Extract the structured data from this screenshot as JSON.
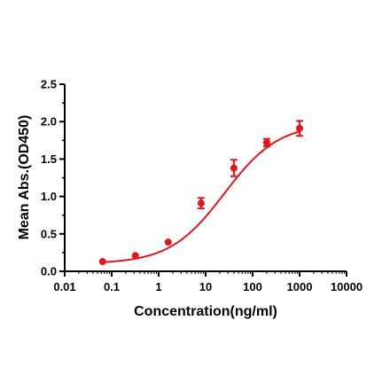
{
  "chart_data": {
    "type": "scatter",
    "title": "",
    "xlabel": "Concentration(ng/ml)",
    "ylabel": "Mean Abs.(OD450)",
    "xscale": "log",
    "xlim": [
      0.01,
      10000
    ],
    "ylim": [
      0,
      2.5
    ],
    "xticks": [
      "0.01",
      "0.1",
      "1",
      "10",
      "100",
      "1000",
      "10000"
    ],
    "yticks": [
      "0.0",
      "0.5",
      "1.0",
      "1.5",
      "2.0",
      "2.5"
    ],
    "series": [
      {
        "color": "#e8141c",
        "points": [
          {
            "x": 0.064,
            "y": 0.13,
            "err": 0.01
          },
          {
            "x": 0.32,
            "y": 0.21,
            "err": 0.01
          },
          {
            "x": 1.6,
            "y": 0.39,
            "err": 0.02
          },
          {
            "x": 8,
            "y": 0.91,
            "err": 0.07
          },
          {
            "x": 40,
            "y": 1.38,
            "err": 0.11
          },
          {
            "x": 200,
            "y": 1.72,
            "err": 0.05
          },
          {
            "x": 1000,
            "y": 1.91,
            "err": 0.1
          }
        ],
        "fit": {
          "bottom": 0.1,
          "top": 1.98,
          "ec50": 25,
          "hill": 0.75
        }
      }
    ],
    "grid": false,
    "legend": "none"
  }
}
